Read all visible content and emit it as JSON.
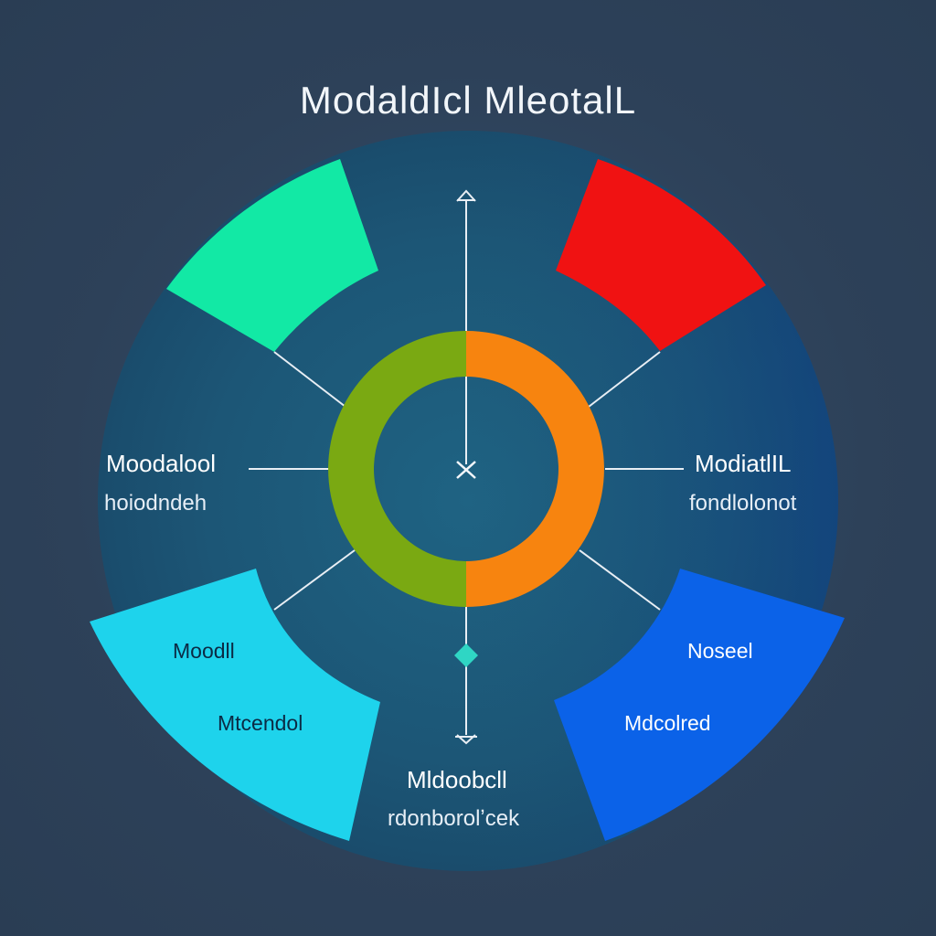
{
  "title": "ModaldIcl MleotalL",
  "labels": {
    "left": {
      "main": "Moodalool",
      "sub": "hoiodndeh"
    },
    "right": {
      "main": "ModiatlIL",
      "sub": "fondlolonot"
    },
    "bottom": {
      "main": "Mldoobcll",
      "sub": "rdonborolʼcek"
    },
    "bottom_left": {
      "top": "Moodll",
      "bottom": "Mtcendol"
    },
    "bottom_right": {
      "top": "Noseel",
      "bottom": "Mdcolred"
    }
  },
  "colors": {
    "background": "#2d4159",
    "disc": "#1f5675",
    "segment_top_left": "#12e9a5",
    "segment_top_right": "#f01212",
    "segment_bottom_left": "#1ed3ec",
    "segment_bottom_right": "#0b62e8",
    "ring_left": "#7aa912",
    "ring_right": "#f7840f",
    "lines": "#e8eef4",
    "diamond": "#2fd6c4"
  },
  "icons": {
    "center": "close-x-icon",
    "marker": "diamond-marker-icon"
  }
}
